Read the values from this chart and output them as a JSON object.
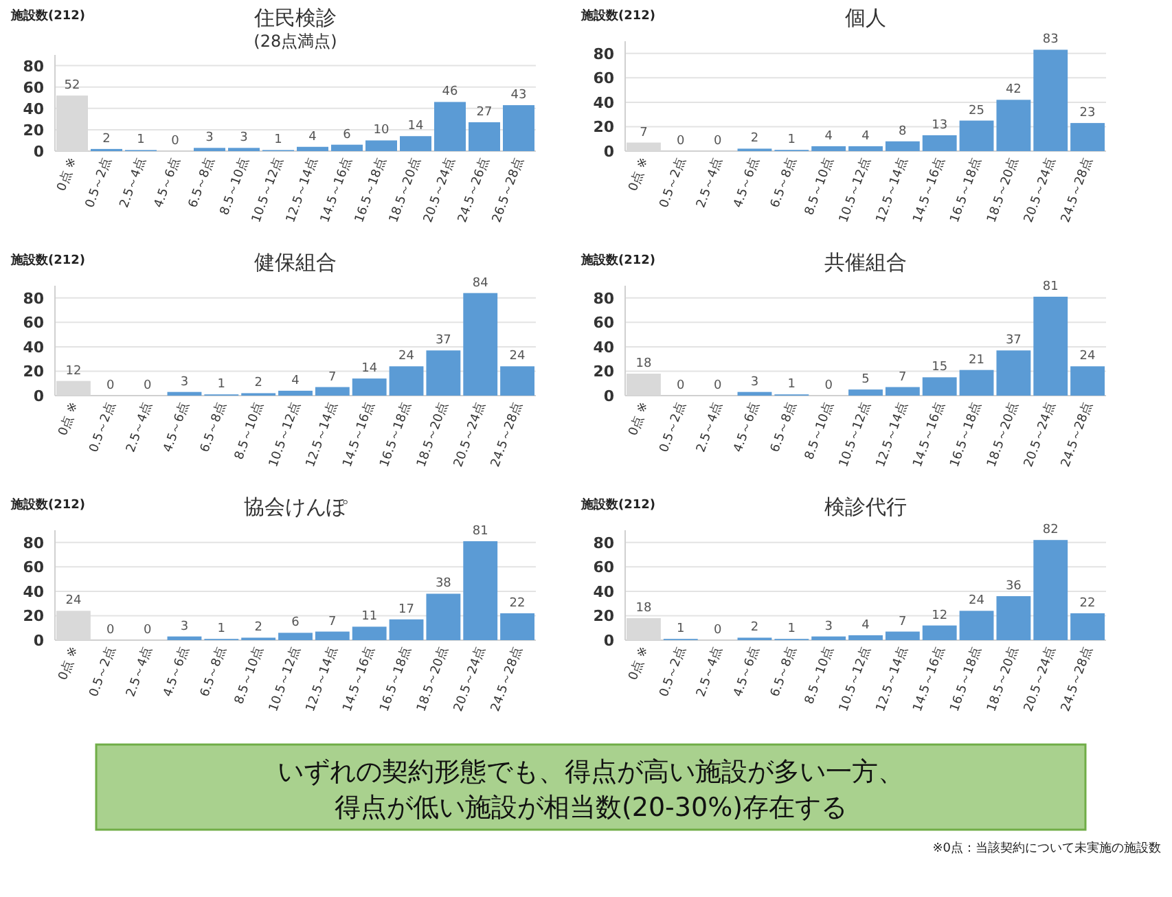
{
  "chart_data": [
    {
      "type": "bar",
      "title": "住民検診",
      "subtitle": "(28点満点)",
      "ylabel": "施設数(212)",
      "categories": [
        "0点 ※",
        "0.5～2点",
        "2.5～4点",
        "4.5～6点",
        "6.5～8点",
        "8.5～10点",
        "10.5～12点",
        "12.5～14点",
        "14.5～16点",
        "16.5～18点",
        "18.5～20点",
        "20.5～24点",
        "24.5～26点",
        "26.5～28点"
      ],
      "values": [
        52,
        2,
        1,
        0,
        3,
        3,
        1,
        4,
        6,
        10,
        14,
        46,
        27,
        43
      ],
      "colors": [
        "#d9d9d9",
        "#5b9bd5",
        "#5b9bd5",
        "#5b9bd5",
        "#5b9bd5",
        "#5b9bd5",
        "#5b9bd5",
        "#5b9bd5",
        "#5b9bd5",
        "#5b9bd5",
        "#5b9bd5",
        "#5b9bd5",
        "#5b9bd5",
        "#5b9bd5"
      ],
      "ylim": [
        0,
        90
      ],
      "yticks": [
        0,
        20,
        40,
        60,
        80
      ],
      "grid": "y",
      "data_labels": true
    },
    {
      "type": "bar",
      "title": "個人",
      "ylabel": "施設数(212)",
      "categories": [
        "0点 ※",
        "0.5～2点",
        "2.5～4点",
        "4.5～6点",
        "6.5～8点",
        "8.5～10点",
        "10.5～12点",
        "12.5～14点",
        "14.5～16点",
        "16.5～18点",
        "18.5～20点",
        "20.5～24点",
        "24.5～28点"
      ],
      "values": [
        7,
        0,
        0,
        2,
        1,
        4,
        4,
        8,
        13,
        25,
        42,
        83,
        23
      ],
      "colors": [
        "#d9d9d9",
        "#5b9bd5",
        "#5b9bd5",
        "#5b9bd5",
        "#5b9bd5",
        "#5b9bd5",
        "#5b9bd5",
        "#5b9bd5",
        "#5b9bd5",
        "#5b9bd5",
        "#5b9bd5",
        "#5b9bd5",
        "#5b9bd5"
      ],
      "ylim": [
        0,
        90
      ],
      "yticks": [
        0,
        20,
        40,
        60,
        80
      ],
      "grid": "y",
      "data_labels": true
    },
    {
      "type": "bar",
      "title": "健保組合",
      "ylabel": "施設数(212)",
      "categories": [
        "0点 ※",
        "0.5～2点",
        "2.5～4点",
        "4.5～6点",
        "6.5～8点",
        "8.5～10点",
        "10.5～12点",
        "12.5～14点",
        "14.5～16点",
        "16.5～18点",
        "18.5～20点",
        "20.5～24点",
        "24.5～28点"
      ],
      "values": [
        12,
        0,
        0,
        3,
        1,
        2,
        4,
        7,
        14,
        24,
        37,
        84,
        24
      ],
      "colors": [
        "#d9d9d9",
        "#5b9bd5",
        "#5b9bd5",
        "#5b9bd5",
        "#5b9bd5",
        "#5b9bd5",
        "#5b9bd5",
        "#5b9bd5",
        "#5b9bd5",
        "#5b9bd5",
        "#5b9bd5",
        "#5b9bd5",
        "#5b9bd5"
      ],
      "ylim": [
        0,
        90
      ],
      "yticks": [
        0,
        20,
        40,
        60,
        80
      ],
      "grid": "y",
      "data_labels": true
    },
    {
      "type": "bar",
      "title": "共催組合",
      "ylabel": "施設数(212)",
      "categories": [
        "0点 ※",
        "0.5～2点",
        "2.5～4点",
        "4.5～6点",
        "6.5～8点",
        "8.5～10点",
        "10.5～12点",
        "12.5～14点",
        "14.5～16点",
        "16.5～18点",
        "18.5～20点",
        "20.5～24点",
        "24.5～28点"
      ],
      "values": [
        18,
        0,
        0,
        3,
        1,
        0,
        5,
        7,
        15,
        21,
        37,
        81,
        24
      ],
      "colors": [
        "#d9d9d9",
        "#5b9bd5",
        "#5b9bd5",
        "#5b9bd5",
        "#5b9bd5",
        "#5b9bd5",
        "#5b9bd5",
        "#5b9bd5",
        "#5b9bd5",
        "#5b9bd5",
        "#5b9bd5",
        "#5b9bd5",
        "#5b9bd5"
      ],
      "ylim": [
        0,
        90
      ],
      "yticks": [
        0,
        20,
        40,
        60,
        80
      ],
      "grid": "y",
      "data_labels": true
    },
    {
      "type": "bar",
      "title": "協会けんぽ",
      "ylabel": "施設数(212)",
      "categories": [
        "0点 ※",
        "0.5～2点",
        "2.5～4点",
        "4.5～6点",
        "6.5～8点",
        "8.5～10点",
        "10.5～12点",
        "12.5～14点",
        "14.5～16点",
        "16.5～18点",
        "18.5～20点",
        "20.5～24点",
        "24.5～28点"
      ],
      "values": [
        24,
        0,
        0,
        3,
        1,
        2,
        6,
        7,
        11,
        17,
        38,
        81,
        22
      ],
      "colors": [
        "#d9d9d9",
        "#5b9bd5",
        "#5b9bd5",
        "#5b9bd5",
        "#5b9bd5",
        "#5b9bd5",
        "#5b9bd5",
        "#5b9bd5",
        "#5b9bd5",
        "#5b9bd5",
        "#5b9bd5",
        "#5b9bd5",
        "#5b9bd5"
      ],
      "ylim": [
        0,
        90
      ],
      "yticks": [
        0,
        20,
        40,
        60,
        80
      ],
      "grid": "y",
      "data_labels": true
    },
    {
      "type": "bar",
      "title": "検診代行",
      "ylabel": "施設数(212)",
      "categories": [
        "0点 ※",
        "0.5～2点",
        "2.5～4点",
        "4.5～6点",
        "6.5～8点",
        "8.5～10点",
        "10.5～12点",
        "12.5～14点",
        "14.5～16点",
        "16.5～18点",
        "18.5～20点",
        "20.5～24点",
        "24.5～28点"
      ],
      "values": [
        18,
        1,
        0,
        2,
        1,
        3,
        4,
        7,
        12,
        24,
        36,
        82,
        22
      ],
      "colors": [
        "#d9d9d9",
        "#5b9bd5",
        "#5b9bd5",
        "#5b9bd5",
        "#5b9bd5",
        "#5b9bd5",
        "#5b9bd5",
        "#5b9bd5",
        "#5b9bd5",
        "#5b9bd5",
        "#5b9bd5",
        "#5b9bd5",
        "#5b9bd5"
      ],
      "ylim": [
        0,
        90
      ],
      "yticks": [
        0,
        20,
        40,
        60,
        80
      ],
      "grid": "y",
      "data_labels": true
    },
    {
      "type": "other",
      "annotations": [
        "いずれの契約形態でも、得点が高い施設が多い一方、",
        "得点が低い施設が相当数(20-30%)存在する",
        "※0点：当該契約について未実施の施設数"
      ]
    }
  ]
}
